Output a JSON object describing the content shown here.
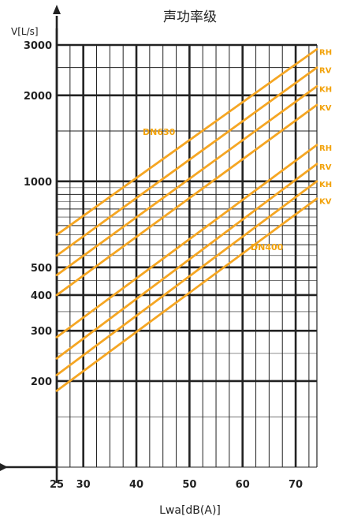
{
  "chart_data": {
    "type": "line",
    "title": "声功率级",
    "xlabel": "Lwa[dB(A)]",
    "ylabel": "V[L/s]",
    "y_scale": "log",
    "xlim": [
      25,
      74
    ],
    "ylim": [
      100,
      3000
    ],
    "x_ticks": [
      25,
      30,
      40,
      50,
      60,
      70
    ],
    "y_ticks": [
      200,
      300,
      400,
      500,
      1000,
      2000,
      3000
    ],
    "grid": true,
    "line_color": "#f5a623",
    "groups": [
      {
        "label": "DN630",
        "series": [
          {
            "name": "RH",
            "x": [
              25,
              74
            ],
            "y": [
              650,
              2900
            ]
          },
          {
            "name": "RV",
            "x": [
              25,
              74
            ],
            "y": [
              550,
              2500
            ]
          },
          {
            "name": "KH",
            "x": [
              25,
              74
            ],
            "y": [
              470,
              2150
            ]
          },
          {
            "name": "KV",
            "x": [
              25,
              74
            ],
            "y": [
              400,
              1850
            ]
          }
        ]
      },
      {
        "label": "DN400",
        "series": [
          {
            "name": "RH",
            "x": [
              25,
              74
            ],
            "y": [
              285,
              1340
            ]
          },
          {
            "name": "RV",
            "x": [
              25,
              74
            ],
            "y": [
              240,
              1150
            ]
          },
          {
            "name": "KH",
            "x": [
              25,
              74
            ],
            "y": [
              210,
              1000
            ]
          },
          {
            "name": "KV",
            "x": [
              25,
              74
            ],
            "y": [
              185,
              870
            ]
          }
        ]
      }
    ]
  }
}
